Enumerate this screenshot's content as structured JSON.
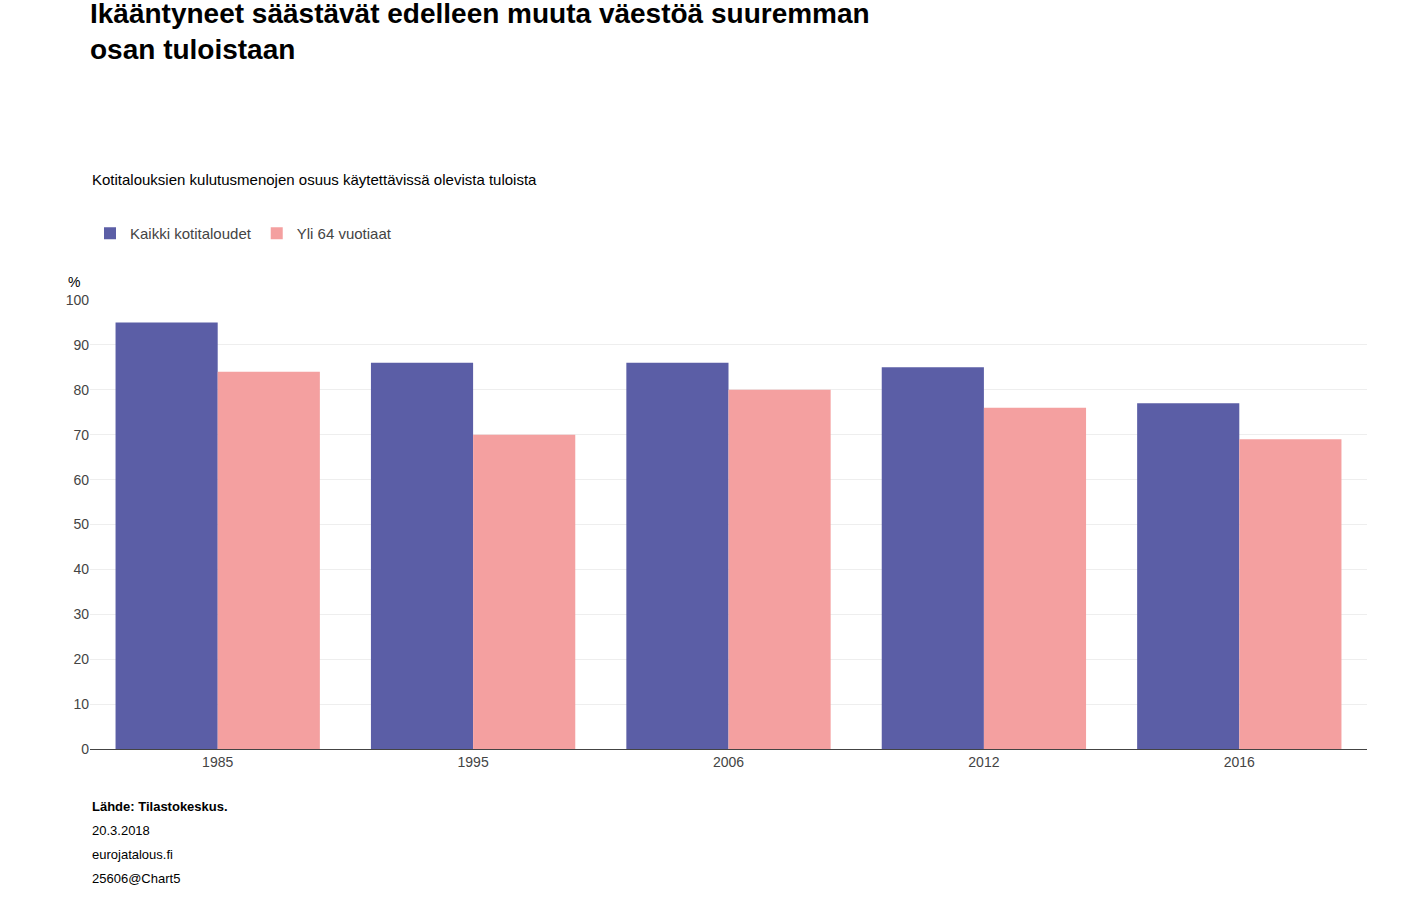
{
  "chart_data": {
    "type": "bar",
    "title": "Ikääntyneet säästävät edelleen muuta väestöä suuremman\nosan tuloistaan",
    "subtitle": "Kotitalouksien kulutusmenojen osuus käytettävissä olevista tuloista",
    "ylabel": "%",
    "categories": [
      "1985",
      "1995",
      "2006",
      "2012",
      "2016"
    ],
    "series": [
      {
        "name": "Kaikki kotitaloudet",
        "color": "#5b5ea6",
        "values": [
          95,
          86,
          86,
          85,
          77
        ]
      },
      {
        "name": "Yli 64 vuotiaat",
        "color": "#f4a0a0",
        "values": [
          84,
          70,
          80,
          76,
          69
        ]
      }
    ],
    "ylim": [
      0,
      100
    ],
    "yticks": [
      0,
      10,
      20,
      30,
      40,
      50,
      60,
      70,
      80,
      90,
      100
    ],
    "grid": true,
    "legend": "top left",
    "annotations": [
      "Lähde: Tilastokeskus.",
      "20.3.2018",
      "eurojatalous.fi",
      "25606@Chart5"
    ]
  }
}
